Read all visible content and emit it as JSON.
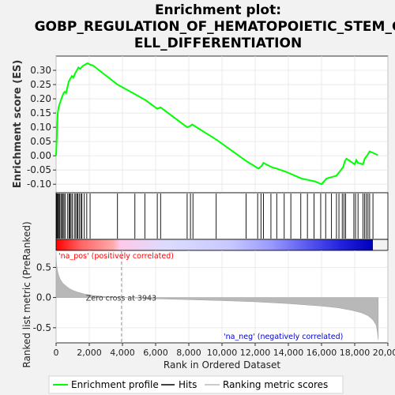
{
  "chart_data": {
    "type": "line",
    "title_lines": [
      "Enrichment plot:",
      "GOBP_REGULATION_OF_HEMATOPOIETIC_STEM_C",
      "ELL_DIFFERENTIATION"
    ],
    "xlabel": "Rank in Ordered Dataset",
    "es_ylabel": "Enrichment score (ES)",
    "metric_ylabel": "Ranked list metric (PreRanked)",
    "xlim": [
      0,
      20000
    ],
    "x_ticks": [
      0,
      2000,
      4000,
      6000,
      8000,
      10000,
      12000,
      14000,
      16000,
      18000,
      20000
    ],
    "x_tick_labels": [
      "0",
      "2,000",
      "4,000",
      "6,000",
      "8,000",
      "10,000",
      "12,000",
      "14,000",
      "16,000",
      "18,000",
      "20,000"
    ],
    "es_ylim": [
      -0.13,
      0.35
    ],
    "es_ticks": [
      -0.1,
      -0.05,
      0.0,
      0.05,
      0.1,
      0.15,
      0.2,
      0.25,
      0.3
    ],
    "es_tick_labels": [
      "-0.10",
      "-0.05",
      "0.00",
      "0.05",
      "0.10",
      "0.15",
      "0.20",
      "0.25",
      "0.30"
    ],
    "metric_ylim": [
      -0.75,
      0.78
    ],
    "metric_ticks": [
      0.5,
      0.0,
      -0.5
    ],
    "metric_tick_labels": [
      "0.5",
      "0.0",
      "-0.5"
    ],
    "es_color": "#00ff00",
    "grid": true,
    "enrichment_profile": {
      "name": "Enrichment profile",
      "x": [
        0,
        60,
        100,
        150,
        200,
        260,
        320,
        380,
        450,
        520,
        600,
        680,
        760,
        850,
        950,
        1050,
        1150,
        1250,
        1350,
        1450,
        1600,
        1750,
        1900,
        2050,
        2200,
        3700,
        4800,
        5400,
        6100,
        6300,
        7900,
        8100,
        8200,
        9700,
        11500,
        12200,
        12400,
        12500,
        13000,
        13300,
        13800,
        14200,
        14800,
        15200,
        15600,
        16000,
        16300,
        16600,
        16900,
        17100,
        17300,
        17400,
        17500,
        18000,
        18100,
        18200,
        18500,
        18600,
        18800,
        18900,
        19100,
        19400
      ],
      "y": [
        0.0,
        0.1,
        0.15,
        0.17,
        0.18,
        0.19,
        0.2,
        0.21,
        0.22,
        0.225,
        0.22,
        0.24,
        0.26,
        0.27,
        0.28,
        0.275,
        0.29,
        0.3,
        0.31,
        0.305,
        0.315,
        0.32,
        0.325,
        0.32,
        0.318,
        0.25,
        0.215,
        0.195,
        0.165,
        0.17,
        0.1,
        0.105,
        0.11,
        0.055,
        -0.02,
        -0.045,
        -0.035,
        -0.025,
        -0.04,
        -0.045,
        -0.055,
        -0.065,
        -0.08,
        -0.085,
        -0.09,
        -0.1,
        -0.08,
        -0.075,
        -0.07,
        -0.055,
        -0.04,
        -0.02,
        -0.01,
        -0.03,
        -0.015,
        -0.025,
        -0.03,
        -0.01,
        0.005,
        0.015,
        0.01,
        0.002
      ]
    },
    "hits": {
      "name": "Hits",
      "x": [
        30,
        70,
        110,
        160,
        220,
        290,
        350,
        420,
        480,
        560,
        700,
        780,
        830,
        900,
        980,
        1100,
        1180,
        1260,
        1320,
        1400,
        1500,
        1560,
        1700,
        1850,
        2050,
        3700,
        4750,
        5350,
        6100,
        6300,
        7900,
        8100,
        8250,
        9650,
        11450,
        12150,
        12350,
        12500,
        12950,
        13300,
        13750,
        14150,
        14750,
        15150,
        15550,
        15950,
        16250,
        16600,
        16900,
        17050,
        17250,
        17350,
        17450,
        17950,
        18050,
        18200,
        18500,
        18600,
        18700,
        18800,
        18900,
        19100
      ]
    },
    "ranking_metric": {
      "name": "Ranking metric scores",
      "x": [
        0,
        30,
        80,
        150,
        250,
        400,
        600,
        800,
        1000,
        1300,
        1700,
        2200,
        2800,
        3400,
        3943,
        5000,
        6000,
        8000,
        10000,
        12000,
        14000,
        16000,
        17000,
        17800,
        18400,
        18800,
        19100,
        19300,
        19380,
        19420
      ],
      "y": [
        0.68,
        0.55,
        0.45,
        0.37,
        0.3,
        0.24,
        0.19,
        0.15,
        0.12,
        0.09,
        0.06,
        0.035,
        0.02,
        0.008,
        0.0,
        -0.01,
        -0.02,
        -0.035,
        -0.05,
        -0.07,
        -0.1,
        -0.14,
        -0.17,
        -0.21,
        -0.25,
        -0.3,
        -0.37,
        -0.46,
        -0.6,
        -0.7
      ]
    },
    "zero_cross": 3943,
    "zero_cross_label": "Zero cross at 3943",
    "pos_label": "'na_pos' (positively correlated)",
    "neg_label": "'na_neg' (negatively correlated)",
    "pos_label_color": "#ff0000",
    "neg_label_color": "#0000cc"
  }
}
